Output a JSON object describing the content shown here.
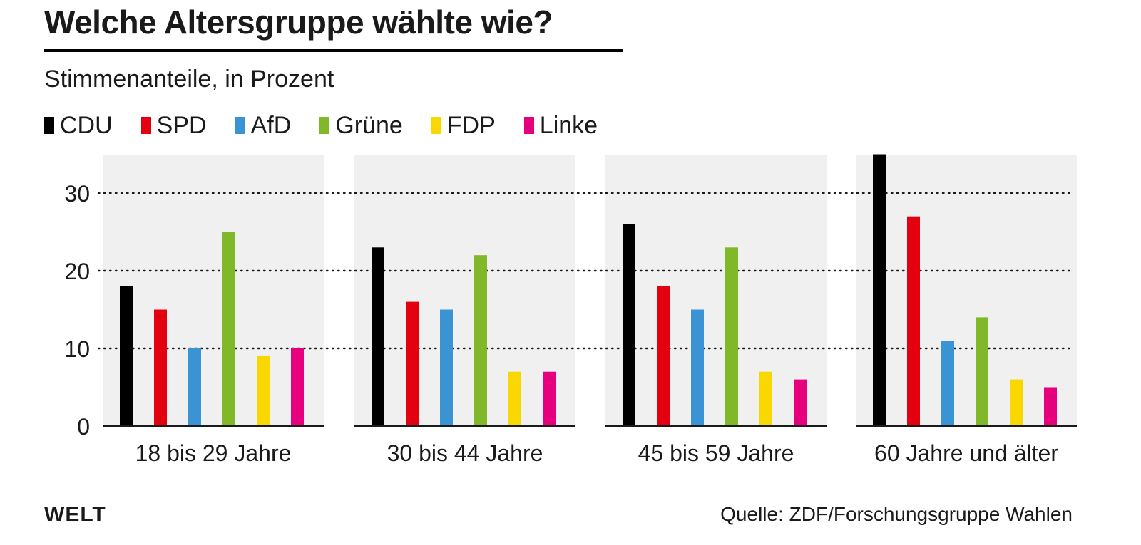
{
  "header": {
    "title": "Welche Altersgruppe wählte wie?",
    "subtitle": "Stimmenanteile, in Prozent"
  },
  "legend": [
    {
      "label": "CDU",
      "color": "#000000"
    },
    {
      "label": "SPD",
      "color": "#e3000f"
    },
    {
      "label": "AfD",
      "color": "#3a94d4"
    },
    {
      "label": "Grüne",
      "color": "#80b829"
    },
    {
      "label": "FDP",
      "color": "#f8d800"
    },
    {
      "label": "Linke",
      "color": "#e6007e"
    }
  ],
  "chart_data": {
    "type": "bar",
    "title": "Welche Altersgruppe wählte wie?",
    "subtitle": "Stimmenanteile, in Prozent",
    "ylim": [
      0,
      35
    ],
    "yticks": [
      0,
      10,
      20,
      30
    ],
    "grid": true,
    "parties": [
      "CDU",
      "SPD",
      "AfD",
      "Grüne",
      "FDP",
      "Linke"
    ],
    "colors": [
      "#000000",
      "#e3000f",
      "#3a94d4",
      "#80b829",
      "#f8d800",
      "#e6007e"
    ],
    "panels": [
      {
        "category": "18 bis 29 Jahre",
        "values": [
          18,
          15,
          10,
          25,
          9,
          10
        ]
      },
      {
        "category": "30 bis 44 Jahre",
        "values": [
          23,
          16,
          15,
          22,
          7,
          7
        ]
      },
      {
        "category": "45 bis 59 Jahre",
        "values": [
          26,
          18,
          15,
          23,
          7,
          6
        ]
      },
      {
        "category": "60 Jahre und älter",
        "values": [
          35,
          27,
          11,
          14,
          6,
          5
        ]
      }
    ]
  },
  "footer": {
    "brand": "WELT",
    "source": "Quelle: ZDF/Forschungsgruppe Wahlen"
  }
}
